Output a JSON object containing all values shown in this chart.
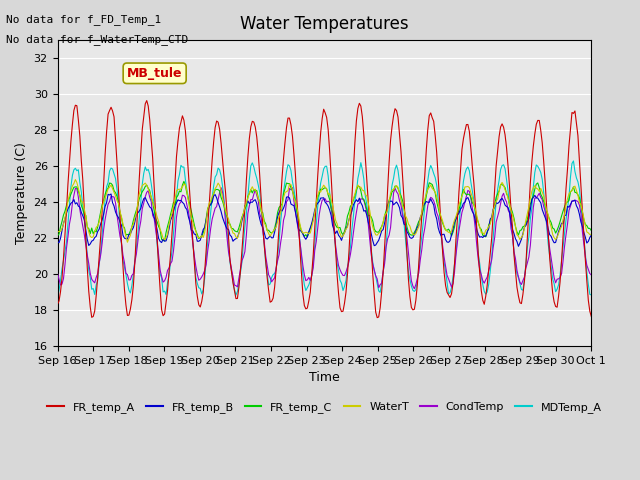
{
  "title": "Water Temperatures",
  "xlabel": "Time",
  "ylabel": "Temperature (C)",
  "ylim": [
    16,
    33
  ],
  "yticks": [
    16,
    18,
    20,
    22,
    24,
    26,
    28,
    30,
    32
  ],
  "note_line1": "No data for f_FD_Temp_1",
  "note_line2": "No data for f_WaterTemp_CTD",
  "mb_tule_label": "MB_tule",
  "legend_entries": [
    "FR_temp_A",
    "FR_temp_B",
    "FR_temp_C",
    "WaterT",
    "CondTemp",
    "MDTemp_A"
  ],
  "legend_colors": [
    "#cc0000",
    "#0000cc",
    "#00cc00",
    "#cccc00",
    "#9900cc",
    "#00cccc"
  ],
  "xtick_labels": [
    "Sep 16",
    "Sep 17",
    "Sep 18",
    "Sep 19",
    "Sep 20",
    "Sep 21",
    "Sep 22",
    "Sep 23",
    "Sep 24",
    "Sep 25",
    "Sep 26",
    "Sep 27",
    "Sep 28",
    "Sep 29",
    "Sep 30",
    "Oct 1"
  ],
  "background_color": "#e8e8e8",
  "plot_bg_color": "#f0f0f0"
}
